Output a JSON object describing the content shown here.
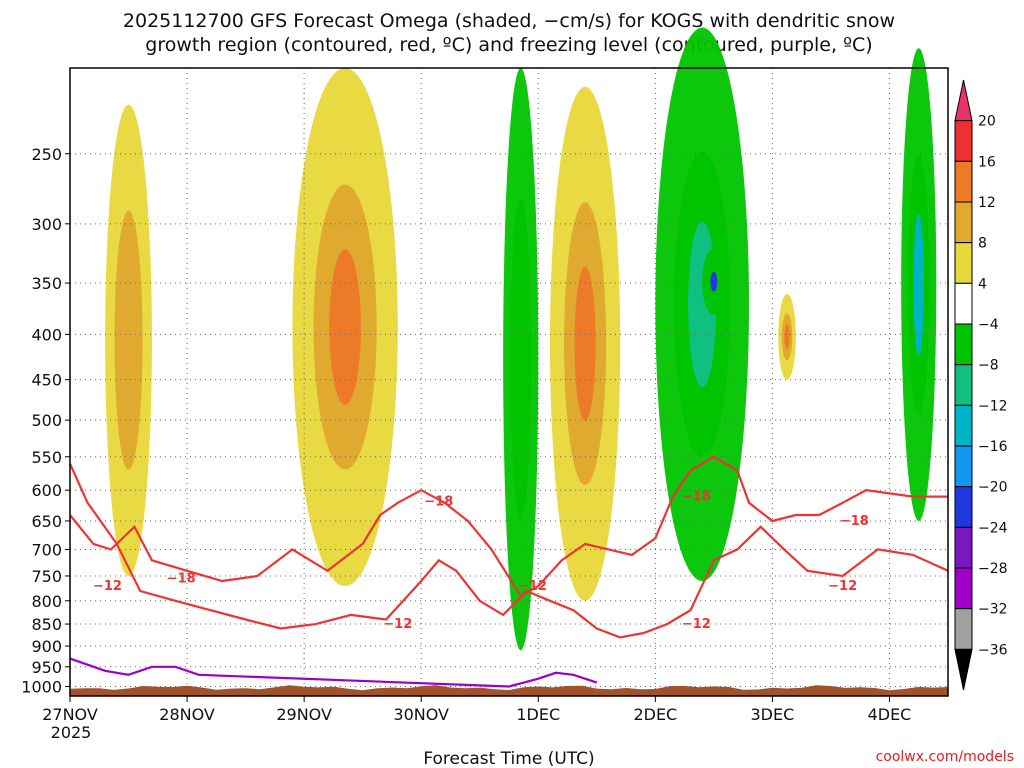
{
  "chart_data": {
    "type": "heatmap",
    "title_line1": "2025112700 GFS Forecast Omega (shaded, −cm/s) for KOGS with dendritic snow",
    "title_line2": "growth region (contoured, red, ºC) and freezing level (contoured, purple, ºC)",
    "xlabel": "Forecast Time (UTC)",
    "x_ticks": [
      "27NOV",
      "28NOV",
      "29NOV",
      "30NOV",
      "1DEC",
      "2DEC",
      "3DEC",
      "4DEC"
    ],
    "x_sublabel": "2025",
    "y_ticks": [
      "250",
      "300",
      "350",
      "400",
      "450",
      "500",
      "550",
      "600",
      "650",
      "700",
      "750",
      "800",
      "850",
      "900",
      "950",
      "1000"
    ],
    "ylim_hpa": [
      200,
      1025
    ],
    "xlim_days": [
      0,
      7.5
    ],
    "colorbar_labels": [
      "20",
      "16",
      "12",
      "8",
      "4",
      "−4",
      "−8",
      "−12",
      "−16",
      "−20",
      "−24",
      "−28",
      "−32",
      "−36"
    ],
    "colorbar_colors": [
      "#e8336a",
      "#f03030",
      "#ec7a28",
      "#e0aa30",
      "#e8d83a",
      "#ffffff",
      "#00c400",
      "#10c080",
      "#00b4c8",
      "#1098f0",
      "#2038e0",
      "#7a18c0",
      "#a000c8",
      "#a0a0a0",
      "#000000"
    ],
    "contour_labels": {
      "dgz_minus18": [
        "−18",
        "−18",
        "−18",
        "−18"
      ],
      "dgz_minus12": [
        "−12",
        "−12",
        "−12",
        "−12",
        "−12"
      ]
    },
    "series": [
      {
        "name": "-18C isotherm",
        "x": [
          0,
          0.2,
          0.35,
          0.55,
          0.7,
          1.0,
          1.3,
          1.6,
          1.9,
          2.2,
          2.5,
          2.65,
          2.8,
          3.0,
          3.2,
          3.4,
          3.6,
          3.85,
          4.0,
          4.2,
          4.4,
          4.6,
          4.8,
          5.0,
          5.15,
          5.3,
          5.5,
          5.7,
          5.8,
          6.0,
          6.2,
          6.4,
          6.6,
          6.8,
          7.0,
          7.2,
          7.5
        ],
        "hpa": [
          640,
          690,
          700,
          660,
          720,
          740,
          760,
          750,
          700,
          740,
          690,
          640,
          620,
          600,
          620,
          650,
          700,
          790,
          770,
          720,
          690,
          700,
          710,
          680,
          610,
          570,
          550,
          570,
          620,
          650,
          640,
          640,
          620,
          600,
          605,
          610,
          610
        ]
      },
      {
        "name": "-12C isotherm",
        "x": [
          0,
          0.15,
          0.4,
          0.6,
          0.9,
          1.2,
          1.5,
          1.8,
          2.1,
          2.4,
          2.7,
          3.0,
          3.15,
          3.3,
          3.5,
          3.7,
          3.9,
          4.1,
          4.3,
          4.5,
          4.7,
          4.9,
          5.1,
          5.3,
          5.5,
          5.7,
          5.9,
          6.1,
          6.3,
          6.6,
          6.9,
          7.2,
          7.5
        ],
        "hpa": [
          560,
          620,
          690,
          780,
          800,
          820,
          840,
          860,
          850,
          830,
          840,
          760,
          720,
          740,
          800,
          830,
          780,
          800,
          820,
          860,
          880,
          870,
          850,
          820,
          720,
          700,
          660,
          700,
          740,
          750,
          700,
          710,
          740
        ]
      },
      {
        "name": "0C freezing level",
        "x": [
          0,
          0.3,
          0.5,
          0.7,
          0.9,
          1.1,
          3.75,
          4.0,
          4.15,
          4.3,
          4.5
        ],
        "hpa": [
          930,
          960,
          970,
          950,
          950,
          970,
          1000,
          980,
          965,
          970,
          990
        ]
      }
    ],
    "shaded_features": [
      {
        "x": [
          0.3,
          0.7
        ],
        "hpa": [
          220,
          750
        ],
        "omega": 8
      },
      {
        "x": [
          1.9,
          2.8
        ],
        "hpa": [
          200,
          770
        ],
        "omega": 12
      },
      {
        "x": [
          3.7,
          4.0
        ],
        "hpa": [
          200,
          910
        ],
        "omega": -8
      },
      {
        "x": [
          4.1,
          4.7
        ],
        "hpa": [
          210,
          800
        ],
        "omega": 12
      },
      {
        "x": [
          5.0,
          5.8
        ],
        "hpa": [
          180,
          760
        ],
        "omega": -12
      },
      {
        "x": [
          5.4,
          5.6
        ],
        "hpa": [
          320,
          380
        ],
        "omega": -24
      },
      {
        "x": [
          6.05,
          6.2
        ],
        "hpa": [
          360,
          450
        ],
        "omega": 12
      },
      {
        "x": [
          7.1,
          7.4
        ],
        "hpa": [
          190,
          650
        ],
        "omega": -16
      }
    ]
  },
  "credit": "coolwx.com/models"
}
